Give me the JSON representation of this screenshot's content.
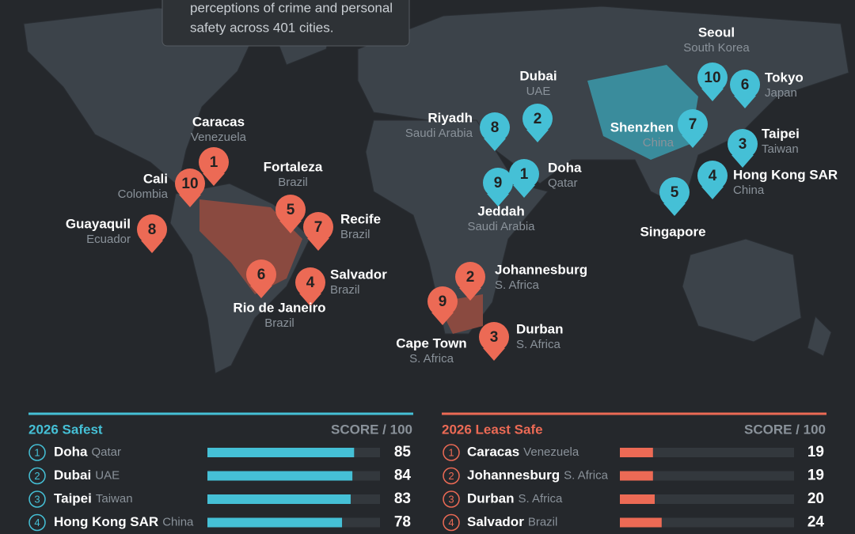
{
  "intro": {
    "lines": [
      "perceptions of crime and personal",
      "safety across 401 cities."
    ]
  },
  "map": {
    "safest": [
      {
        "rank": 1,
        "city": "Doha",
        "country": "Qatar"
      },
      {
        "rank": 2,
        "city": "Dubai",
        "country": "UAE"
      },
      {
        "rank": 3,
        "city": "Taipei",
        "country": "Taiwan"
      },
      {
        "rank": 4,
        "city": "Hong Kong SAR",
        "country": "China"
      },
      {
        "rank": 5,
        "city": "Singapore"
      },
      {
        "rank": 6,
        "city": "Tokyo",
        "country": "Japan"
      },
      {
        "rank": 7,
        "city": "Shenzhen",
        "country": "China"
      },
      {
        "rank": 8,
        "city": "Riyadh",
        "country": "Saudi Arabia"
      },
      {
        "rank": 9,
        "city": "Jeddah",
        "country": "Saudi Arabia"
      },
      {
        "rank": 10,
        "city": "Seoul",
        "country": "South Korea"
      }
    ],
    "least_safe": [
      {
        "rank": 1,
        "city": "Caracas",
        "country": "Venezuela"
      },
      {
        "rank": 2,
        "city": "Johannesburg",
        "country": "S. Africa"
      },
      {
        "rank": 3,
        "city": "Durban",
        "country": "S. Africa"
      },
      {
        "rank": 4,
        "city": "Salvador",
        "country": "Brazil"
      },
      {
        "rank": 5,
        "city": "Fortaleza",
        "country": "Brazil"
      },
      {
        "rank": 6,
        "city": "Rio de Janeiro",
        "country": "Brazil"
      },
      {
        "rank": 7,
        "city": "Recife",
        "country": "Brazil"
      },
      {
        "rank": 8,
        "city": "Guayaquil",
        "country": "Ecuador"
      },
      {
        "rank": 9,
        "city": "Cape Town",
        "country": "S. Africa"
      },
      {
        "rank": 10,
        "city": "Cali",
        "country": "Colombia"
      }
    ]
  },
  "tables": [
    {
      "title": "2026 Safest",
      "scale": {
        "label": "SCORE / 100",
        "max": 100
      },
      "color": "#45c0d6",
      "rows": [
        {
          "rank": 1,
          "city": "Doha",
          "country": "Qatar",
          "score": 85
        },
        {
          "rank": 2,
          "city": "Dubai",
          "country": "UAE",
          "score": 84
        },
        {
          "rank": 3,
          "city": "Taipei",
          "country": "Taiwan",
          "score": 83
        },
        {
          "rank": 4,
          "city": "Hong Kong SAR",
          "country": "China",
          "score": 78
        }
      ]
    },
    {
      "title": "2026 Least Safe",
      "scale": {
        "label": "SCORE / 100",
        "max": 100
      },
      "color": "#ec6a55",
      "rows": [
        {
          "rank": 1,
          "city": "Caracas",
          "country": "Venezuela",
          "score": 19
        },
        {
          "rank": 2,
          "city": "Johannesburg",
          "country": "S. Africa",
          "score": 19
        },
        {
          "rank": 3,
          "city": "Durban",
          "country": "S. Africa",
          "score": 20
        },
        {
          "rank": 4,
          "city": "Salvador",
          "country": "Brazil",
          "score": 24
        }
      ]
    }
  ]
}
